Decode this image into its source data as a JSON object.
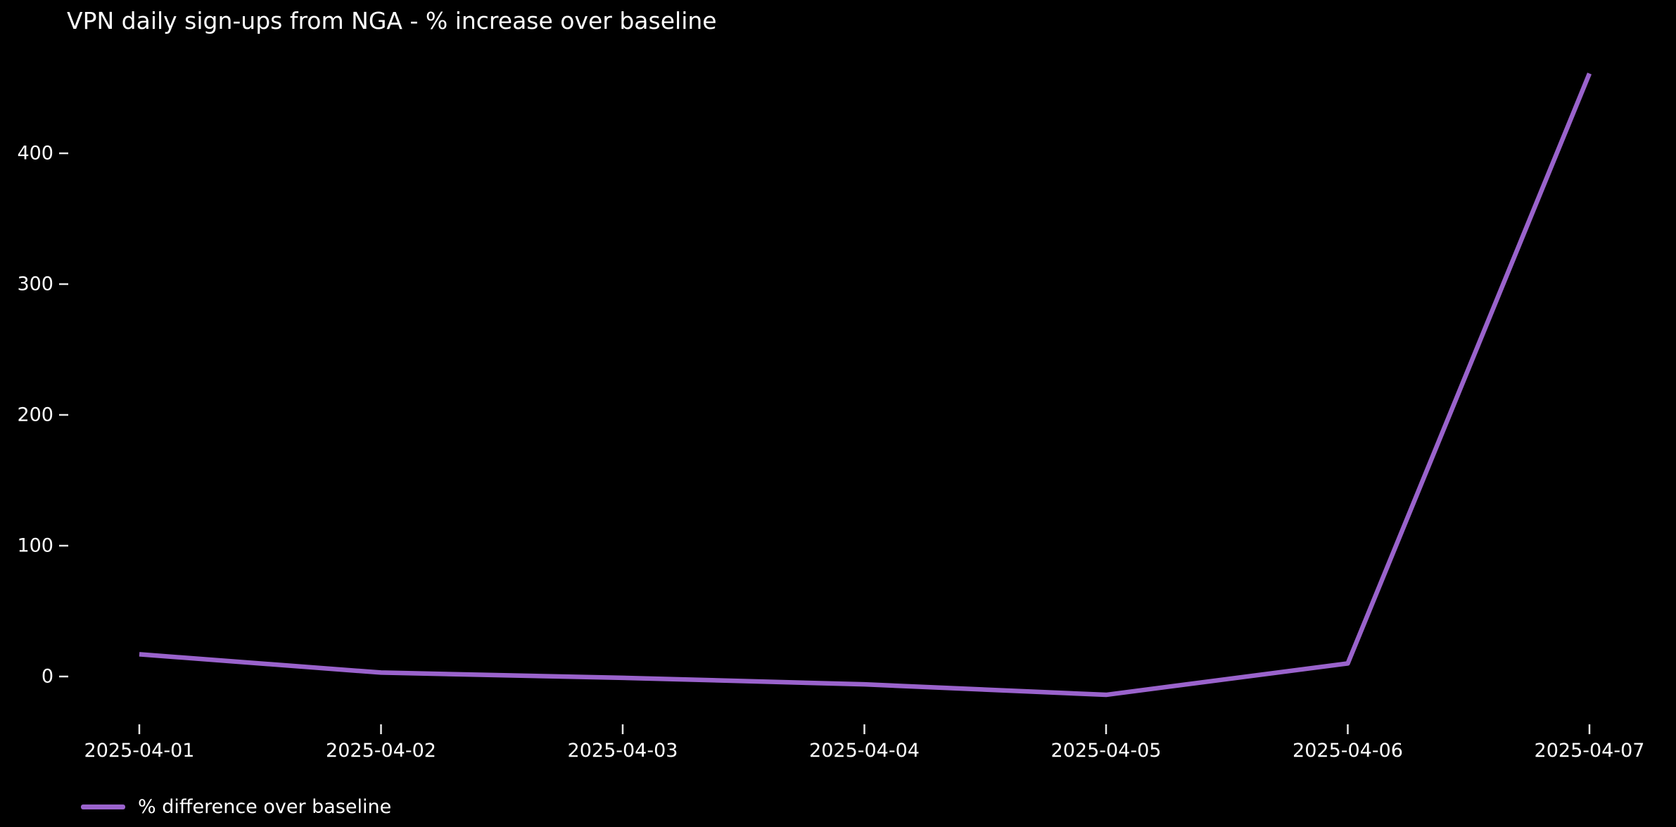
{
  "chart": {
    "title": "VPN daily sign-ups from NGA - % increase over baseline",
    "legend": {
      "label": "% difference over baseline"
    },
    "colors": {
      "background": "#000000",
      "text": "#ffffff",
      "tick": "#e8e8e8",
      "line": "#9a63cc"
    }
  },
  "chart_data": {
    "type": "line",
    "title": "VPN daily sign-ups from NGA - % increase over baseline",
    "categories": [
      "2025-04-01",
      "2025-04-02",
      "2025-04-03",
      "2025-04-04",
      "2025-04-05",
      "2025-04-06",
      "2025-04-07"
    ],
    "series": [
      {
        "name": "% difference over baseline",
        "values": [
          17,
          3,
          -1,
          -6,
          -14,
          10,
          461
        ]
      }
    ],
    "xlabel": "",
    "ylabel": "",
    "yticks": [
      0,
      100,
      200,
      300,
      400
    ],
    "ylim": [
      -45,
      470
    ],
    "grid": false,
    "legend_position": "lower left"
  }
}
